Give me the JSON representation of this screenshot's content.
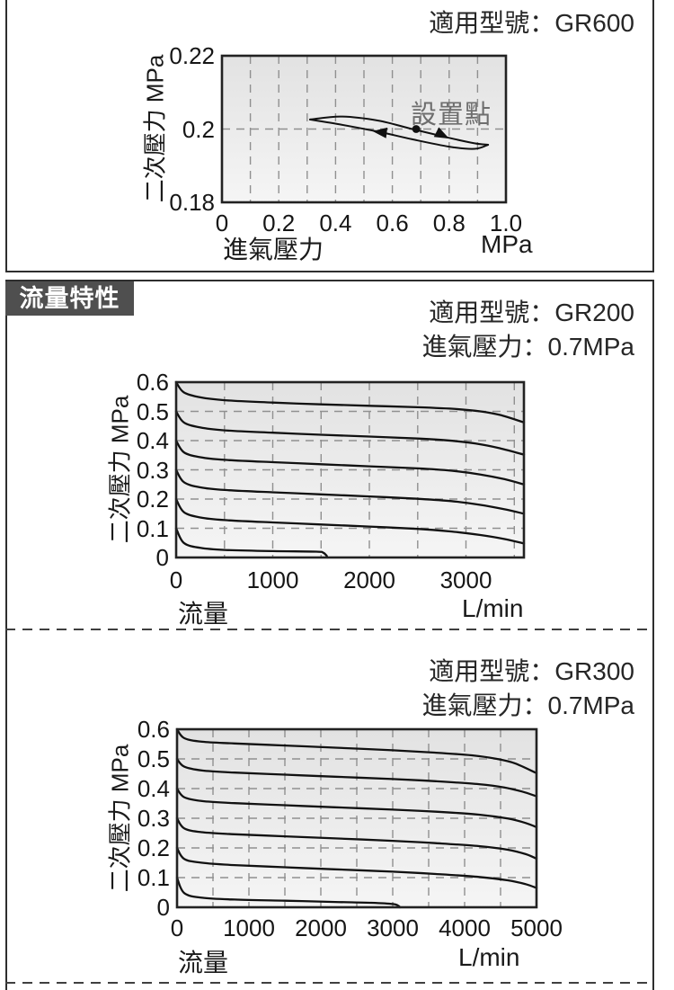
{
  "header": {
    "section_label": "流量特性"
  },
  "gr600": {
    "model_line": "適用型號：GR600"
  },
  "gr200": {
    "model_line": "適用型號：GR200",
    "pressure_line": "進氣壓力：0.7MPa"
  },
  "gr300": {
    "model_line": "適用型號：GR300",
    "pressure_line": "進氣壓力：0.7MPa"
  },
  "colors": {
    "header_box_bg": "#4f4f4f",
    "curve": "#111111",
    "grid": "#909090",
    "plot_bg_top": "#e2e2e2",
    "plot_bg_bottom": "#f5f5f5",
    "annotation_text": "#6e6e6e"
  },
  "chart_data": [
    {
      "id": "gr600",
      "type": "line",
      "model": "GR600",
      "title": "適用型號：GR600",
      "xlabel": "進氣壓力",
      "xunit": "MPa",
      "ylabel": "二次壓力 MPa",
      "xlim": [
        0,
        1.0
      ],
      "ylim": [
        0.18,
        0.22
      ],
      "xticks": [
        {
          "v": 0,
          "label": "0"
        },
        {
          "v": 0.2,
          "label": "0.2"
        },
        {
          "v": 0.4,
          "label": "0.4"
        },
        {
          "v": 0.6,
          "label": "0.6"
        },
        {
          "v": 0.8,
          "label": "0.8"
        },
        {
          "v": 1.0,
          "label": "1.0"
        }
      ],
      "yticks": [
        {
          "v": 0.22,
          "label": "0.22"
        },
        {
          "v": 0.2,
          "label": "0.2"
        },
        {
          "v": 0.18,
          "label": "0.18"
        }
      ],
      "grid_x": [
        0.1,
        0.2,
        0.3,
        0.4,
        0.5,
        0.6,
        0.7,
        0.8,
        0.9
      ],
      "grid_y": [
        0.2
      ],
      "annotation": "設置點",
      "set_point": {
        "x": 0.684,
        "y": 0.2
      },
      "arrows": [
        {
          "x": 0.53,
          "y": 0.1994,
          "angle": 187
        },
        {
          "x": 0.8,
          "y": 0.1974,
          "angle": 27
        }
      ],
      "series": [
        {
          "name": "hysteresis-upper-branch",
          "points": [
            [
              0.31,
              0.2026
            ],
            [
              0.42,
              0.2034
            ],
            [
              0.55,
              0.2023
            ],
            [
              0.67,
              0.2
            ],
            [
              0.8,
              0.1976
            ],
            [
              0.89,
              0.1961
            ],
            [
              0.937,
              0.1957
            ]
          ]
        },
        {
          "name": "hysteresis-lower-branch",
          "points": [
            [
              0.31,
              0.2026
            ],
            [
              0.42,
              0.2012
            ],
            [
              0.55,
              0.1993
            ],
            [
              0.67,
              0.1972
            ],
            [
              0.8,
              0.1952
            ],
            [
              0.89,
              0.1946
            ],
            [
              0.937,
              0.1957
            ]
          ]
        }
      ]
    },
    {
      "id": "gr200",
      "type": "line",
      "model": "GR200",
      "title": "適用型號：GR200",
      "subtitle": "進氣壓力：0.7MPa",
      "xlabel": "流量",
      "xunit": "L/min",
      "ylabel": "二次壓力 MPa",
      "xlim": [
        0,
        3600
      ],
      "ylim": [
        0,
        0.6
      ],
      "xticks": [
        {
          "v": 0,
          "label": "0"
        },
        {
          "v": 1000,
          "label": "1000"
        },
        {
          "v": 2000,
          "label": "2000"
        },
        {
          "v": 3000,
          "label": "3000"
        }
      ],
      "yticks": [
        {
          "v": 0.6,
          "label": "0.6"
        },
        {
          "v": 0.5,
          "label": "0.5"
        },
        {
          "v": 0.4,
          "label": "0.4"
        },
        {
          "v": 0.3,
          "label": "0.3"
        },
        {
          "v": 0.2,
          "label": "0.2"
        },
        {
          "v": 0.1,
          "label": "0.1"
        },
        {
          "v": 0,
          "label": "0"
        }
      ],
      "grid_x": [
        500,
        1000,
        1500,
        2000,
        2500,
        3000,
        3500
      ],
      "grid_y": [
        0.1,
        0.2,
        0.3,
        0.4,
        0.5
      ],
      "series": [
        {
          "name": "set-0.6",
          "points": [
            [
              0,
              0.6
            ],
            [
              80,
              0.565
            ],
            [
              250,
              0.548
            ],
            [
              500,
              0.538
            ],
            [
              1000,
              0.53
            ],
            [
              1500,
              0.524
            ],
            [
              2000,
              0.519
            ],
            [
              2500,
              0.514
            ],
            [
              2900,
              0.508
            ],
            [
              3150,
              0.5
            ],
            [
              3350,
              0.488
            ],
            [
              3600,
              0.462
            ]
          ]
        },
        {
          "name": "set-0.5",
          "points": [
            [
              0,
              0.5
            ],
            [
              80,
              0.462
            ],
            [
              250,
              0.445
            ],
            [
              500,
              0.435
            ],
            [
              1000,
              0.427
            ],
            [
              1500,
              0.42
            ],
            [
              2000,
              0.414
            ],
            [
              2500,
              0.407
            ],
            [
              2800,
              0.401
            ],
            [
              3100,
              0.39
            ],
            [
              3350,
              0.374
            ],
            [
              3600,
              0.352
            ]
          ]
        },
        {
          "name": "set-0.4",
          "points": [
            [
              0,
              0.4
            ],
            [
              80,
              0.36
            ],
            [
              250,
              0.343
            ],
            [
              500,
              0.334
            ],
            [
              1000,
              0.326
            ],
            [
              1500,
              0.319
            ],
            [
              2000,
              0.312
            ],
            [
              2500,
              0.305
            ],
            [
              2850,
              0.297
            ],
            [
              3150,
              0.284
            ],
            [
              3400,
              0.268
            ],
            [
              3600,
              0.25
            ]
          ]
        },
        {
          "name": "set-0.3",
          "points": [
            [
              0,
              0.3
            ],
            [
              80,
              0.258
            ],
            [
              250,
              0.24
            ],
            [
              500,
              0.231
            ],
            [
              1000,
              0.223
            ],
            [
              1500,
              0.216
            ],
            [
              2000,
              0.209
            ],
            [
              2500,
              0.201
            ],
            [
              2850,
              0.193
            ],
            [
              3150,
              0.18
            ],
            [
              3400,
              0.165
            ],
            [
              3600,
              0.15
            ]
          ]
        },
        {
          "name": "set-0.2",
          "points": [
            [
              0,
              0.2
            ],
            [
              80,
              0.155
            ],
            [
              250,
              0.137
            ],
            [
              500,
              0.128
            ],
            [
              1000,
              0.12
            ],
            [
              1500,
              0.113
            ],
            [
              2000,
              0.106
            ],
            [
              2500,
              0.098
            ],
            [
              2850,
              0.089
            ],
            [
              3150,
              0.077
            ],
            [
              3400,
              0.063
            ],
            [
              3600,
              0.048
            ]
          ]
        },
        {
          "name": "set-0.1",
          "points": [
            [
              0,
              0.1
            ],
            [
              80,
              0.05
            ],
            [
              250,
              0.033
            ],
            [
              500,
              0.026
            ],
            [
              1000,
              0.022
            ],
            [
              1450,
              0.02
            ],
            [
              1520,
              0.017
            ],
            [
              1555,
              0.007
            ],
            [
              1565,
              0
            ]
          ]
        }
      ]
    },
    {
      "id": "gr300",
      "type": "line",
      "model": "GR300",
      "title": "適用型號：GR300",
      "subtitle": "進氣壓力：0.7MPa",
      "xlabel": "流量",
      "xunit": "L/min",
      "ylabel": "二次壓力 MPa",
      "xlim": [
        0,
        5000
      ],
      "ylim": [
        0,
        0.6
      ],
      "xticks": [
        {
          "v": 0,
          "label": "0"
        },
        {
          "v": 1000,
          "label": "1000"
        },
        {
          "v": 2000,
          "label": "2000"
        },
        {
          "v": 3000,
          "label": "3000"
        },
        {
          "v": 4000,
          "label": "4000"
        },
        {
          "v": 5000,
          "label": "5000"
        }
      ],
      "yticks": [
        {
          "v": 0.6,
          "label": "0.6"
        },
        {
          "v": 0.5,
          "label": "0.5"
        },
        {
          "v": 0.4,
          "label": "0.4"
        },
        {
          "v": 0.3,
          "label": "0.3"
        },
        {
          "v": 0.2,
          "label": "0.2"
        },
        {
          "v": 0.1,
          "label": "0.1"
        },
        {
          "v": 0,
          "label": "0"
        }
      ],
      "grid_x": [
        500,
        1000,
        1500,
        2000,
        2500,
        3000,
        3500,
        4000,
        4500
      ],
      "grid_y": [
        0.1,
        0.2,
        0.3,
        0.4,
        0.5
      ],
      "series": [
        {
          "name": "set-0.6",
          "points": [
            [
              0,
              0.6
            ],
            [
              100,
              0.57
            ],
            [
              350,
              0.558
            ],
            [
              800,
              0.552
            ],
            [
              1500,
              0.545
            ],
            [
              2200,
              0.538
            ],
            [
              3000,
              0.529
            ],
            [
              3600,
              0.521
            ],
            [
              4100,
              0.512
            ],
            [
              4450,
              0.5
            ],
            [
              4700,
              0.485
            ],
            [
              5000,
              0.452
            ]
          ]
        },
        {
          "name": "set-0.5",
          "points": [
            [
              0,
              0.5
            ],
            [
              100,
              0.474
            ],
            [
              350,
              0.461
            ],
            [
              800,
              0.454
            ],
            [
              1500,
              0.447
            ],
            [
              2200,
              0.44
            ],
            [
              3000,
              0.432
            ],
            [
              3600,
              0.425
            ],
            [
              4200,
              0.415
            ],
            [
              4550,
              0.404
            ],
            [
              4800,
              0.39
            ],
            [
              5000,
              0.374
            ]
          ]
        },
        {
          "name": "set-0.4",
          "points": [
            [
              0,
              0.4
            ],
            [
              100,
              0.371
            ],
            [
              350,
              0.358
            ],
            [
              800,
              0.351
            ],
            [
              1500,
              0.344
            ],
            [
              2200,
              0.337
            ],
            [
              3000,
              0.329
            ],
            [
              3600,
              0.322
            ],
            [
              4200,
              0.312
            ],
            [
              4600,
              0.299
            ],
            [
              4850,
              0.284
            ],
            [
              5000,
              0.27
            ]
          ]
        },
        {
          "name": "set-0.3",
          "points": [
            [
              0,
              0.3
            ],
            [
              100,
              0.266
            ],
            [
              350,
              0.253
            ],
            [
              800,
              0.246
            ],
            [
              1500,
              0.239
            ],
            [
              2200,
              0.232
            ],
            [
              3000,
              0.224
            ],
            [
              3600,
              0.216
            ],
            [
              4200,
              0.206
            ],
            [
              4600,
              0.194
            ],
            [
              4850,
              0.179
            ],
            [
              5000,
              0.164
            ]
          ]
        },
        {
          "name": "set-0.2",
          "points": [
            [
              0,
              0.2
            ],
            [
              100,
              0.163
            ],
            [
              350,
              0.15
            ],
            [
              800,
              0.142
            ],
            [
              1500,
              0.135
            ],
            [
              2200,
              0.128
            ],
            [
              3000,
              0.12
            ],
            [
              3600,
              0.112
            ],
            [
              4200,
              0.102
            ],
            [
              4600,
              0.091
            ],
            [
              4850,
              0.078
            ],
            [
              5000,
              0.065
            ]
          ]
        },
        {
          "name": "set-0.1",
          "points": [
            [
              0,
              0.1
            ],
            [
              100,
              0.048
            ],
            [
              350,
              0.032
            ],
            [
              800,
              0.026
            ],
            [
              1500,
              0.022
            ],
            [
              2200,
              0.018
            ],
            [
              2700,
              0.015
            ],
            [
              3000,
              0.011
            ],
            [
              3080,
              0.005
            ],
            [
              3100,
              0
            ]
          ]
        }
      ]
    }
  ]
}
